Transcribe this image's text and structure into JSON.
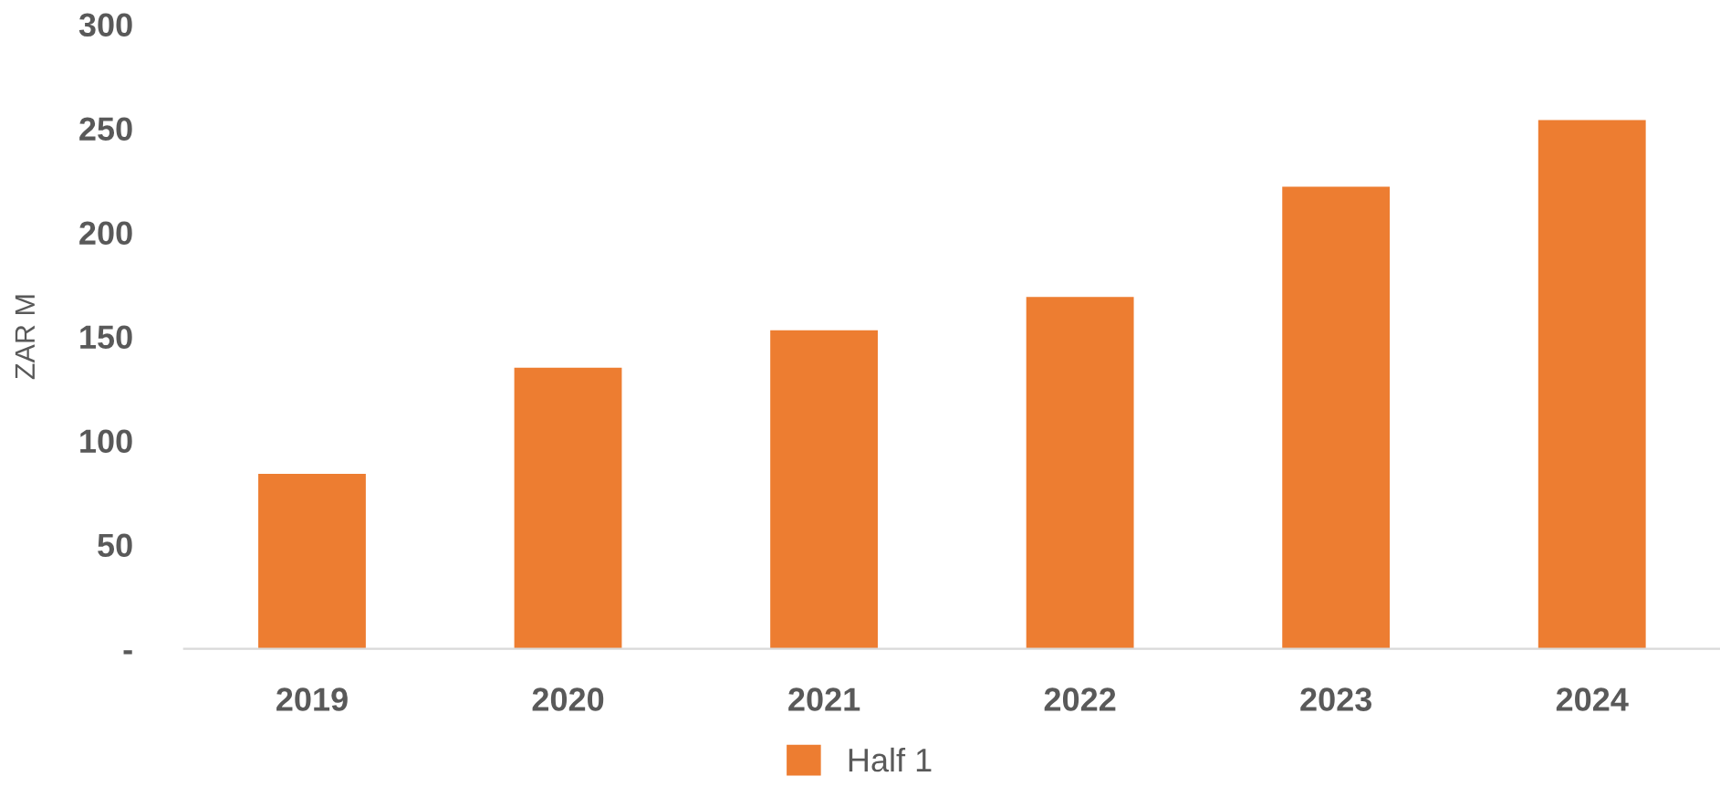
{
  "chart_data": {
    "type": "bar",
    "ylabel": "ZAR M",
    "categories": [
      "2019",
      "2020",
      "2021",
      "2022",
      "2023",
      "2024"
    ],
    "series": [
      {
        "name": "Half 1",
        "color": "#ed7d31",
        "values": [
          84,
          135,
          153,
          169,
          222,
          254
        ]
      }
    ],
    "ylim": [
      0,
      300
    ],
    "yticks": [
      {
        "value": 0,
        "label": "-"
      },
      50,
      100,
      150,
      200,
      250,
      300
    ],
    "grid": false,
    "legend": "bottom"
  }
}
